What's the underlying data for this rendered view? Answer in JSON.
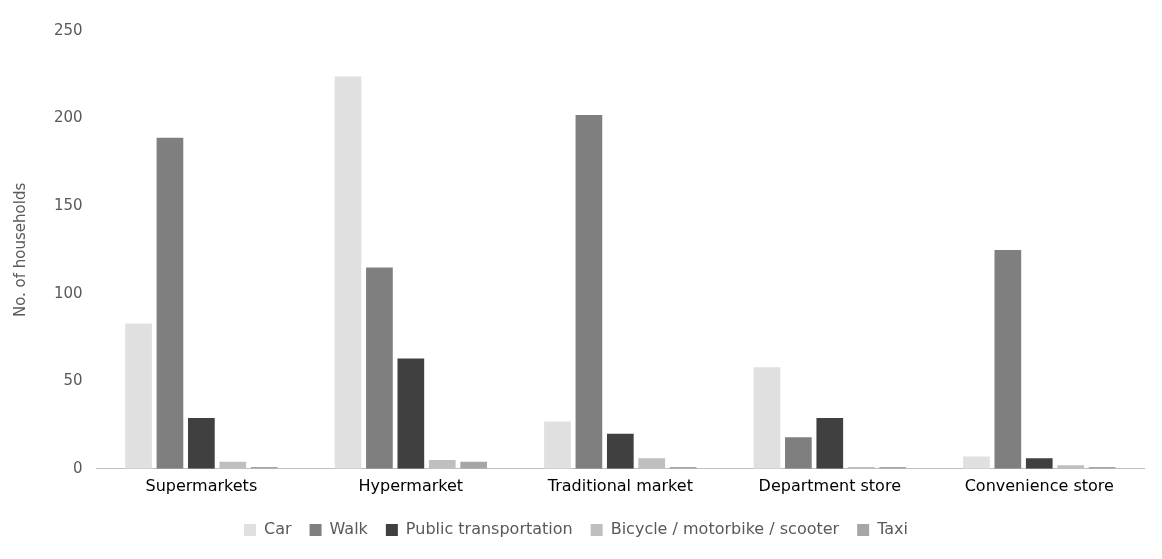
{
  "chart_data": {
    "type": "bar",
    "ylabel": "No. of households",
    "categories": [
      "Supermarkets",
      "Hypermarket",
      "Traditional market",
      "Department store",
      "Convenience store"
    ],
    "series": [
      {
        "name": "Car",
        "color": "#e0e0e0",
        "values": [
          83,
          224,
          27,
          58,
          7
        ]
      },
      {
        "name": "Walk",
        "color": "#7f7f7f",
        "values": [
          189,
          115,
          202,
          18,
          125
        ]
      },
      {
        "name": "Public transportation",
        "color": "#404040",
        "values": [
          29,
          63,
          20,
          29,
          6
        ]
      },
      {
        "name": "Bicycle / motorbike / scooter",
        "color": "#bfbfbf",
        "values": [
          4,
          5,
          6,
          1,
          2
        ]
      },
      {
        "name": "Taxi",
        "color": "#a6a6a6",
        "values": [
          1,
          4,
          1,
          1,
          1
        ]
      }
    ],
    "ylim": [
      0,
      250
    ],
    "yticks": [
      0,
      50,
      100,
      150,
      200,
      250
    ],
    "grid": false,
    "legend": "bottom"
  }
}
